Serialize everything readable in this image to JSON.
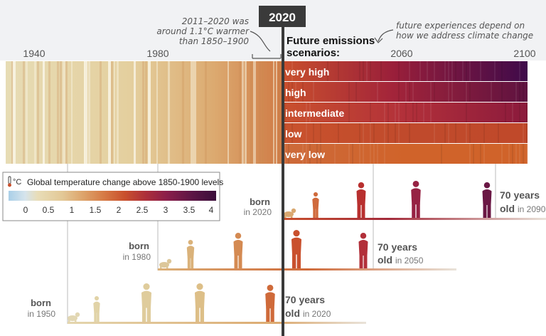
{
  "header": {
    "year_box": "2020",
    "annotation_left": [
      "2011–2020 was",
      "around 1.1°C warmer",
      "than 1850–1900"
    ],
    "annotation_right": [
      "future experiences depend on",
      "how we address climate change"
    ],
    "future_title": [
      "Future emissions",
      "scenarios:"
    ]
  },
  "timeline": {
    "ticks": [
      "1940",
      "1980",
      "2060",
      "2100"
    ]
  },
  "scenarios": [
    {
      "label": "very high",
      "end_color": "#3f0a4a"
    },
    {
      "label": "high",
      "end_color": "#5e1240"
    },
    {
      "label": "intermediate",
      "end_color": "#8b1a3c"
    },
    {
      "label": "low",
      "end_color": "#c0492a"
    },
    {
      "label": "very low",
      "end_color": "#d0632a"
    }
  ],
  "legend": {
    "unit_icon": "thermometer-icon",
    "unit": "°C",
    "title": "Global temperature change above 1850-1900 levels",
    "ticks": [
      "0",
      "0.5",
      "1",
      "1.5",
      "2",
      "2.5",
      "3",
      "3.5",
      "4"
    ],
    "colors": [
      "#a9cfe8",
      "#d6e4ec",
      "#e8ddb8",
      "#e3c896",
      "#dda36a",
      "#d67a45",
      "#c9502d",
      "#ad2f3a",
      "#8b1e4a",
      "#5e1545",
      "#3a0d3a"
    ]
  },
  "generations": [
    {
      "born_word": "born",
      "born_year": "in 2020",
      "age_title": "70 years",
      "age_word": "old",
      "age_year": "in 2090"
    },
    {
      "born_word": "born",
      "born_year": "in 1980",
      "age_title": "70 years",
      "age_word": "old",
      "age_year": "in 2050"
    },
    {
      "born_word": "born",
      "born_year": "in 1950",
      "age_title": "70 years",
      "age_word": "old",
      "age_year": "in 2020"
    }
  ]
}
